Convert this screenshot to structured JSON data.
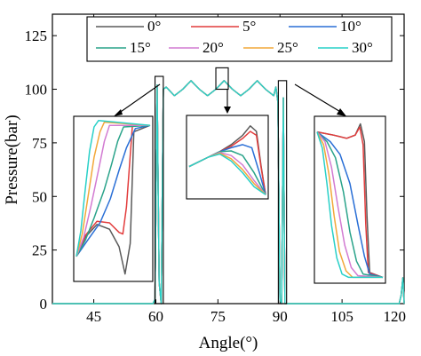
{
  "chart_data": {
    "type": "line",
    "xlabel": "Angle(°)",
    "ylabel": "Pressure(bar)",
    "xlim": [
      35,
      120
    ],
    "ylim": [
      0,
      135
    ],
    "x_ticks": [
      "45",
      "60",
      "75",
      "90",
      "105",
      "120"
    ],
    "x_tick_values": [
      45,
      60,
      75,
      90,
      105,
      120
    ],
    "y_ticks": [
      "0",
      "25",
      "50",
      "75",
      "100",
      "125"
    ],
    "y_tick_values": [
      0,
      25,
      50,
      75,
      100,
      125
    ],
    "grid": false,
    "legend_position": "top",
    "series": [
      {
        "name": "0°",
        "color": "#5a5a5a"
      },
      {
        "name": "5°",
        "color": "#e23c3c"
      },
      {
        "name": "10°",
        "color": "#2a6fd6"
      },
      {
        "name": "15°",
        "color": "#2aa38a"
      },
      {
        "name": "20°",
        "color": "#d27bd2"
      },
      {
        "name": "25°",
        "color": "#f2a83a"
      },
      {
        "name": "30°",
        "color": "#29d0c8"
      }
    ],
    "main_curve": {
      "description_free": true,
      "x": [
        35,
        59.3,
        59.8,
        60.3,
        60.8,
        61.3,
        61.8,
        62.5,
        64.5,
        66.5,
        68.5,
        70.5,
        72.5,
        74.5,
        76.5,
        78.5,
        80.5,
        82.5,
        84.5,
        86.5,
        88.5,
        89.0,
        89.5,
        90.0,
        90.4,
        90.8,
        91.2,
        91.8,
        118.8,
        119.3,
        119.7,
        120
      ],
      "y": [
        0,
        0,
        2,
        102,
        10,
        0,
        100,
        101,
        97,
        100,
        104,
        100,
        97,
        100,
        104,
        100,
        97,
        100,
        104,
        100,
        97,
        101,
        94,
        2,
        0,
        96,
        0,
        0,
        0,
        4,
        12,
        0
      ]
    },
    "highlight_boxes": [
      {
        "x0": 59.8,
        "x1": 61.8,
        "y0": 0,
        "y1": 106
      },
      {
        "x0": 74.5,
        "x1": 77.5,
        "y0": 100,
        "y1": 110
      },
      {
        "x0": 89.6,
        "x1": 91.6,
        "y0": 0,
        "y1": 104
      }
    ],
    "insets": [
      {
        "name": "left",
        "curves": [
          {
            "color": "#5a5a5a",
            "points": [
              [
                0,
                0.14
              ],
              [
                0.12,
                0.26
              ],
              [
                0.28,
                0.34
              ],
              [
                0.45,
                0.31
              ],
              [
                0.58,
                0.2
              ],
              [
                0.66,
                0.03
              ],
              [
                0.73,
                0.22
              ],
              [
                0.78,
                0.92
              ],
              [
                1,
                0.96
              ]
            ]
          },
          {
            "color": "#e23c3c",
            "points": [
              [
                0,
                0.14
              ],
              [
                0.12,
                0.27
              ],
              [
                0.28,
                0.36
              ],
              [
                0.45,
                0.35
              ],
              [
                0.58,
                0.29
              ],
              [
                0.63,
                0.28
              ],
              [
                0.68,
                0.45
              ],
              [
                0.76,
                0.96
              ],
              [
                1,
                0.96
              ]
            ]
          },
          {
            "color": "#2a6fd6",
            "points": [
              [
                0,
                0.14
              ],
              [
                0.15,
                0.24
              ],
              [
                0.32,
                0.35
              ],
              [
                0.46,
                0.5
              ],
              [
                0.58,
                0.68
              ],
              [
                0.68,
                0.82
              ],
              [
                0.8,
                0.94
              ],
              [
                1,
                0.96
              ]
            ]
          },
          {
            "color": "#2aa38a",
            "points": [
              [
                0,
                0.14
              ],
              [
                0.12,
                0.24
              ],
              [
                0.24,
                0.38
              ],
              [
                0.38,
                0.56
              ],
              [
                0.48,
                0.72
              ],
              [
                0.56,
                0.86
              ],
              [
                0.64,
                0.95
              ],
              [
                1,
                0.96
              ]
            ]
          },
          {
            "color": "#d27bd2",
            "points": [
              [
                0,
                0.14
              ],
              [
                0.1,
                0.26
              ],
              [
                0.2,
                0.46
              ],
              [
                0.3,
                0.68
              ],
              [
                0.38,
                0.86
              ],
              [
                0.45,
                0.96
              ],
              [
                1,
                0.96
              ]
            ]
          },
          {
            "color": "#f2a83a",
            "points": [
              [
                0,
                0.14
              ],
              [
                0.08,
                0.28
              ],
              [
                0.16,
                0.52
              ],
              [
                0.24,
                0.76
              ],
              [
                0.32,
                0.92
              ],
              [
                0.38,
                0.98
              ],
              [
                1,
                0.96
              ]
            ]
          },
          {
            "color": "#29d0c8",
            "points": [
              [
                0,
                0.14
              ],
              [
                0.06,
                0.3
              ],
              [
                0.12,
                0.56
              ],
              [
                0.18,
                0.8
              ],
              [
                0.24,
                0.95
              ],
              [
                0.3,
                0.99
              ],
              [
                1,
                0.96
              ]
            ]
          }
        ]
      },
      {
        "name": "middle",
        "curves": [
          {
            "color": "#5a5a5a",
            "points": [
              [
                0,
                0.38
              ],
              [
                0.25,
                0.5
              ],
              [
                0.4,
                0.57
              ],
              [
                0.55,
                0.66
              ],
              [
                0.7,
                0.78
              ],
              [
                0.8,
                0.9
              ],
              [
                0.88,
                0.83
              ],
              [
                0.94,
                0.4
              ],
              [
                1,
                0.02
              ]
            ]
          },
          {
            "color": "#e23c3c",
            "points": [
              [
                0,
                0.38
              ],
              [
                0.25,
                0.5
              ],
              [
                0.4,
                0.57
              ],
              [
                0.55,
                0.64
              ],
              [
                0.7,
                0.74
              ],
              [
                0.8,
                0.83
              ],
              [
                0.88,
                0.78
              ],
              [
                0.94,
                0.38
              ],
              [
                1,
                0.02
              ]
            ]
          },
          {
            "color": "#2a6fd6",
            "points": [
              [
                0,
                0.38
              ],
              [
                0.25,
                0.5
              ],
              [
                0.4,
                0.57
              ],
              [
                0.55,
                0.62
              ],
              [
                0.7,
                0.66
              ],
              [
                0.82,
                0.62
              ],
              [
                0.92,
                0.3
              ],
              [
                1,
                0.02
              ]
            ]
          },
          {
            "color": "#2aa38a",
            "points": [
              [
                0,
                0.38
              ],
              [
                0.25,
                0.5
              ],
              [
                0.4,
                0.57
              ],
              [
                0.55,
                0.58
              ],
              [
                0.7,
                0.52
              ],
              [
                0.85,
                0.3
              ],
              [
                1,
                0.02
              ]
            ]
          },
          {
            "color": "#d27bd2",
            "points": [
              [
                0,
                0.38
              ],
              [
                0.25,
                0.5
              ],
              [
                0.4,
                0.56
              ],
              [
                0.55,
                0.52
              ],
              [
                0.7,
                0.4
              ],
              [
                0.85,
                0.2
              ],
              [
                1,
                0.02
              ]
            ]
          },
          {
            "color": "#f2a83a",
            "points": [
              [
                0,
                0.38
              ],
              [
                0.25,
                0.5
              ],
              [
                0.4,
                0.55
              ],
              [
                0.55,
                0.48
              ],
              [
                0.7,
                0.34
              ],
              [
                0.85,
                0.16
              ],
              [
                1,
                0.02
              ]
            ]
          },
          {
            "color": "#29d0c8",
            "points": [
              [
                0,
                0.38
              ],
              [
                0.25,
                0.5
              ],
              [
                0.4,
                0.54
              ],
              [
                0.55,
                0.45
              ],
              [
                0.7,
                0.3
              ],
              [
                0.85,
                0.12
              ],
              [
                1,
                0.02
              ]
            ]
          }
        ]
      },
      {
        "name": "right",
        "curves": [
          {
            "color": "#5a5a5a",
            "points": [
              [
                0,
                0.92
              ],
              [
                0.25,
                0.9
              ],
              [
                0.45,
                0.88
              ],
              [
                0.58,
                0.9
              ],
              [
                0.66,
                0.97
              ],
              [
                0.72,
                0.86
              ],
              [
                0.76,
                0.4
              ],
              [
                0.8,
                0.05
              ],
              [
                1,
                0.02
              ]
            ]
          },
          {
            "color": "#e23c3c",
            "points": [
              [
                0,
                0.92
              ],
              [
                0.25,
                0.9
              ],
              [
                0.45,
                0.88
              ],
              [
                0.58,
                0.9
              ],
              [
                0.65,
                0.95
              ],
              [
                0.7,
                0.84
              ],
              [
                0.74,
                0.35
              ],
              [
                0.78,
                0.05
              ],
              [
                1,
                0.02
              ]
            ]
          },
          {
            "color": "#2a6fd6",
            "points": [
              [
                0,
                0.92
              ],
              [
                0.2,
                0.86
              ],
              [
                0.35,
                0.78
              ],
              [
                0.5,
                0.6
              ],
              [
                0.62,
                0.35
              ],
              [
                0.72,
                0.15
              ],
              [
                0.8,
                0.04
              ],
              [
                1,
                0.02
              ]
            ]
          },
          {
            "color": "#2aa38a",
            "points": [
              [
                0,
                0.92
              ],
              [
                0.15,
                0.86
              ],
              [
                0.28,
                0.76
              ],
              [
                0.4,
                0.55
              ],
              [
                0.5,
                0.3
              ],
              [
                0.6,
                0.12
              ],
              [
                0.7,
                0.04
              ],
              [
                1,
                0.02
              ]
            ]
          },
          {
            "color": "#d27bd2",
            "points": [
              [
                0,
                0.92
              ],
              [
                0.12,
                0.86
              ],
              [
                0.22,
                0.7
              ],
              [
                0.32,
                0.45
              ],
              [
                0.42,
                0.22
              ],
              [
                0.52,
                0.08
              ],
              [
                0.62,
                0.03
              ],
              [
                1,
                0.02
              ]
            ]
          },
          {
            "color": "#f2a83a",
            "points": [
              [
                0,
                0.92
              ],
              [
                0.1,
                0.84
              ],
              [
                0.18,
                0.66
              ],
              [
                0.26,
                0.4
              ],
              [
                0.34,
                0.18
              ],
              [
                0.44,
                0.06
              ],
              [
                0.54,
                0.02
              ],
              [
                1,
                0.02
              ]
            ]
          },
          {
            "color": "#29d0c8",
            "points": [
              [
                0,
                0.92
              ],
              [
                0.08,
                0.82
              ],
              [
                0.15,
                0.6
              ],
              [
                0.22,
                0.34
              ],
              [
                0.3,
                0.14
              ],
              [
                0.38,
                0.04
              ],
              [
                0.48,
                0.02
              ],
              [
                1,
                0.02
              ]
            ]
          }
        ]
      }
    ]
  }
}
